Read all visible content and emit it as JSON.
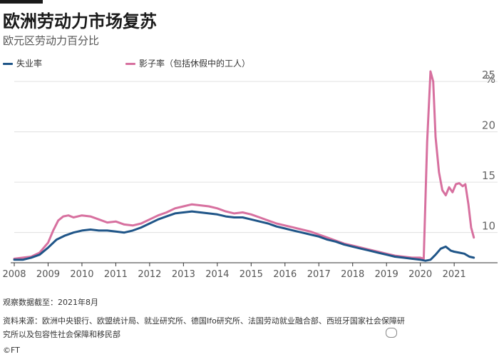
{
  "title": "欧洲劳动力市场复苏",
  "subtitle": "欧元区劳动力百分比",
  "notes": {
    "data_as_of": "观察数据截至：2021年8月",
    "source_line1": "资料来源：欧洲中央银行、欧盟统计局、就业研究所、德国Ifo研究所、法国劳动就业融合部、西班牙国家社会保障研",
    "source_line2": "究所以及包容性社会保障和移民部",
    "logo": "©FT"
  },
  "watermark": "",
  "colors": {
    "unemployment": "#1f5588",
    "shadow": "#d7709f",
    "grid": "#e0e0e0",
    "baseline": "#333333"
  },
  "chart_data": {
    "type": "line",
    "title": "欧洲劳动力市场复苏",
    "subtitle": "欧元区劳动力百分比",
    "unit_label": "%",
    "xlabel": "",
    "ylabel": "",
    "xlim": [
      2008,
      2021.65
    ],
    "ylim": [
      7,
      26
    ],
    "x_ticks": [
      2008,
      2009,
      2010,
      2011,
      2012,
      2013,
      2014,
      2015,
      2016,
      2017,
      2018,
      2019,
      2020,
      2021
    ],
    "y_ticks": [
      10,
      15,
      20,
      25
    ],
    "grid": true,
    "legend_position": "top",
    "series": [
      {
        "name": "失业率",
        "color": "#1f5588",
        "points": [
          [
            2008.0,
            7.3
          ],
          [
            2008.25,
            7.3
          ],
          [
            2008.5,
            7.5
          ],
          [
            2008.75,
            7.8
          ],
          [
            2009.0,
            8.5
          ],
          [
            2009.25,
            9.3
          ],
          [
            2009.5,
            9.7
          ],
          [
            2009.75,
            10.0
          ],
          [
            2010.0,
            10.2
          ],
          [
            2010.25,
            10.3
          ],
          [
            2010.5,
            10.2
          ],
          [
            2010.75,
            10.2
          ],
          [
            2011.0,
            10.1
          ],
          [
            2011.25,
            10.0
          ],
          [
            2011.5,
            10.2
          ],
          [
            2011.75,
            10.5
          ],
          [
            2012.0,
            10.9
          ],
          [
            2012.25,
            11.3
          ],
          [
            2012.5,
            11.6
          ],
          [
            2012.75,
            11.9
          ],
          [
            2013.0,
            12.0
          ],
          [
            2013.25,
            12.1
          ],
          [
            2013.5,
            12.0
          ],
          [
            2013.75,
            11.9
          ],
          [
            2014.0,
            11.8
          ],
          [
            2014.25,
            11.6
          ],
          [
            2014.5,
            11.5
          ],
          [
            2014.75,
            11.5
          ],
          [
            2015.0,
            11.3
          ],
          [
            2015.25,
            11.1
          ],
          [
            2015.5,
            10.9
          ],
          [
            2015.75,
            10.6
          ],
          [
            2016.0,
            10.4
          ],
          [
            2016.25,
            10.2
          ],
          [
            2016.5,
            10.0
          ],
          [
            2016.75,
            9.8
          ],
          [
            2017.0,
            9.6
          ],
          [
            2017.25,
            9.3
          ],
          [
            2017.5,
            9.1
          ],
          [
            2017.75,
            8.8
          ],
          [
            2018.0,
            8.6
          ],
          [
            2018.25,
            8.4
          ],
          [
            2018.5,
            8.2
          ],
          [
            2018.75,
            8.0
          ],
          [
            2019.0,
            7.8
          ],
          [
            2019.25,
            7.6
          ],
          [
            2019.5,
            7.5
          ],
          [
            2019.75,
            7.4
          ],
          [
            2020.0,
            7.3
          ],
          [
            2020.15,
            7.2
          ],
          [
            2020.3,
            7.3
          ],
          [
            2020.45,
            7.8
          ],
          [
            2020.6,
            8.4
          ],
          [
            2020.75,
            8.6
          ],
          [
            2020.9,
            8.2
          ],
          [
            2021.0,
            8.1
          ],
          [
            2021.15,
            8.0
          ],
          [
            2021.3,
            7.9
          ],
          [
            2021.45,
            7.6
          ],
          [
            2021.58,
            7.5
          ]
        ]
      },
      {
        "name": "影子率（包括休假中的工人）",
        "color": "#d7709f",
        "points": [
          [
            2008.0,
            7.4
          ],
          [
            2008.25,
            7.5
          ],
          [
            2008.5,
            7.6
          ],
          [
            2008.75,
            8.0
          ],
          [
            2009.0,
            9.0
          ],
          [
            2009.15,
            10.2
          ],
          [
            2009.3,
            11.2
          ],
          [
            2009.45,
            11.6
          ],
          [
            2009.6,
            11.7
          ],
          [
            2009.75,
            11.5
          ],
          [
            2010.0,
            11.7
          ],
          [
            2010.25,
            11.6
          ],
          [
            2010.5,
            11.3
          ],
          [
            2010.75,
            11.0
          ],
          [
            2011.0,
            11.1
          ],
          [
            2011.25,
            10.8
          ],
          [
            2011.5,
            10.7
          ],
          [
            2011.75,
            10.9
          ],
          [
            2012.0,
            11.3
          ],
          [
            2012.25,
            11.7
          ],
          [
            2012.5,
            12.0
          ],
          [
            2012.75,
            12.4
          ],
          [
            2013.0,
            12.6
          ],
          [
            2013.25,
            12.8
          ],
          [
            2013.5,
            12.7
          ],
          [
            2013.75,
            12.6
          ],
          [
            2014.0,
            12.4
          ],
          [
            2014.25,
            12.1
          ],
          [
            2014.5,
            11.9
          ],
          [
            2014.75,
            12.0
          ],
          [
            2015.0,
            11.8
          ],
          [
            2015.25,
            11.5
          ],
          [
            2015.5,
            11.2
          ],
          [
            2015.75,
            10.9
          ],
          [
            2016.0,
            10.7
          ],
          [
            2016.25,
            10.5
          ],
          [
            2016.5,
            10.3
          ],
          [
            2016.75,
            10.1
          ],
          [
            2017.0,
            9.8
          ],
          [
            2017.25,
            9.5
          ],
          [
            2017.5,
            9.2
          ],
          [
            2017.75,
            8.9
          ],
          [
            2018.0,
            8.7
          ],
          [
            2018.25,
            8.5
          ],
          [
            2018.5,
            8.3
          ],
          [
            2018.75,
            8.1
          ],
          [
            2019.0,
            7.9
          ],
          [
            2019.25,
            7.7
          ],
          [
            2019.5,
            7.6
          ],
          [
            2019.75,
            7.5
          ],
          [
            2020.0,
            7.5
          ],
          [
            2020.1,
            7.4
          ],
          [
            2020.2,
            19.0
          ],
          [
            2020.3,
            26.0
          ],
          [
            2020.38,
            25.0
          ],
          [
            2020.45,
            19.5
          ],
          [
            2020.55,
            16.0
          ],
          [
            2020.65,
            14.2
          ],
          [
            2020.75,
            13.7
          ],
          [
            2020.85,
            14.5
          ],
          [
            2020.95,
            14.0
          ],
          [
            2021.05,
            14.8
          ],
          [
            2021.15,
            14.9
          ],
          [
            2021.25,
            14.6
          ],
          [
            2021.33,
            14.8
          ],
          [
            2021.42,
            12.8
          ],
          [
            2021.5,
            10.5
          ],
          [
            2021.58,
            9.5
          ]
        ]
      }
    ]
  }
}
